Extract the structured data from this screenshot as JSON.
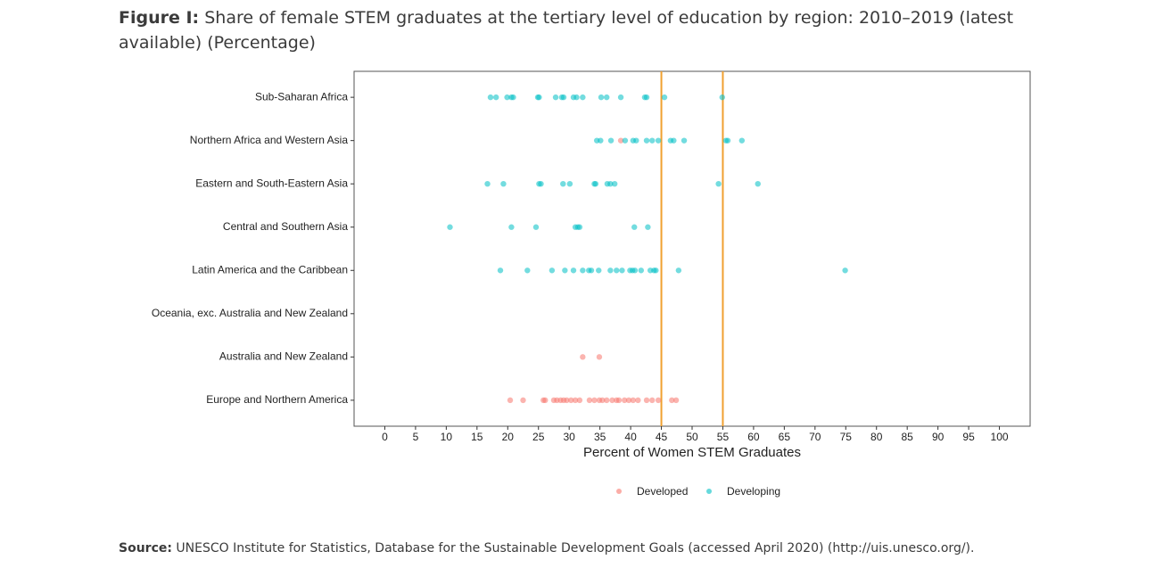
{
  "chart_data": {
    "type": "scatter",
    "title_label": "Figure I:",
    "title": "Share of female STEM graduates at the tertiary level of education by region: 2010–2019 (latest available) (Percentage)",
    "x_label": "Percent of Women STEM Graduates",
    "source_label": "Source:",
    "source": "UNESCO Institute for Statistics, Database for the Sustainable Development Goals (accessed April 2020) (http://uis.unesco.org/).",
    "categories": [
      "Sub-Saharan Africa",
      "Northern Africa and Western Asia",
      "Eastern and South-Eastern Asia",
      "Central and Southern Asia",
      "Latin America and the Caribbean",
      "Oceania, exc. Australia and New Zealand",
      "Australia and New Zealand",
      "Europe and Northern America"
    ],
    "xlim": [
      -5,
      105
    ],
    "xticks": [
      0,
      5,
      10,
      15,
      20,
      25,
      30,
      35,
      40,
      45,
      50,
      55,
      60,
      65,
      70,
      75,
      80,
      85,
      90,
      95,
      100
    ],
    "reference_lines": [
      45,
      55
    ],
    "reference_color": "#f0a030",
    "legend": "bottom",
    "series": [
      {
        "name": "Developed",
        "color": "#F8766D",
        "values": [
          [],
          [
            38.4
          ],
          [],
          [],
          [],
          [],
          [
            32.2,
            34.9
          ],
          [
            20.4,
            22.5,
            25.8,
            26.1,
            27.5,
            28,
            28.6,
            29.1,
            29.6,
            30.3,
            31,
            31.7,
            33.3,
            34.1,
            34.9,
            35.4,
            36.1,
            37,
            37.7,
            38.1,
            39,
            39.7,
            40.4,
            41.2,
            42.6,
            43.5,
            44.5,
            46.7,
            47.4
          ]
        ]
      },
      {
        "name": "Developing",
        "color": "#00BFC4",
        "values": [
          [
            17.2,
            18.1,
            19.9,
            20.6,
            20.9,
            24.9,
            25.1,
            27.8,
            28.8,
            29.1,
            30.7,
            31.2,
            32.2,
            35.2,
            36.1,
            38.4,
            42.3,
            42.6,
            45.5,
            54.9
          ],
          [
            34.5,
            35.1,
            36.8,
            39.1,
            40.4,
            40.9,
            42.6,
            43.5,
            44.5,
            46.5,
            47,
            48.7,
            55.5,
            55.8,
            58.1
          ],
          [
            16.7,
            19.3,
            25.1,
            25.4,
            29,
            30.1,
            34.1,
            34.3,
            36.2,
            36.7,
            37.4,
            54.3,
            60.7
          ],
          [
            10.6,
            20.6,
            24.6,
            31,
            31.4,
            31.7,
            40.6,
            42.8
          ],
          [
            18.8,
            23.2,
            27.2,
            29.3,
            30.7,
            32.2,
            33.2,
            33.6,
            34.8,
            36.7,
            37.7,
            38.6,
            39.9,
            40.3,
            40.7,
            41.7,
            43.2,
            43.8,
            44.1,
            47.8,
            74.9
          ],
          [],
          [],
          []
        ]
      }
    ]
  }
}
